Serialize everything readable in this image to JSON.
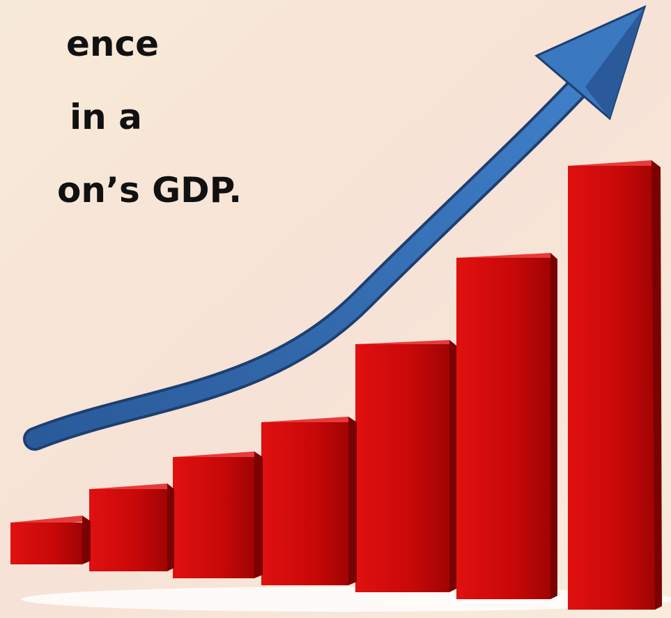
{
  "text_lines": [
    "ence",
    "in a",
    "on’s GDP."
  ]
}
